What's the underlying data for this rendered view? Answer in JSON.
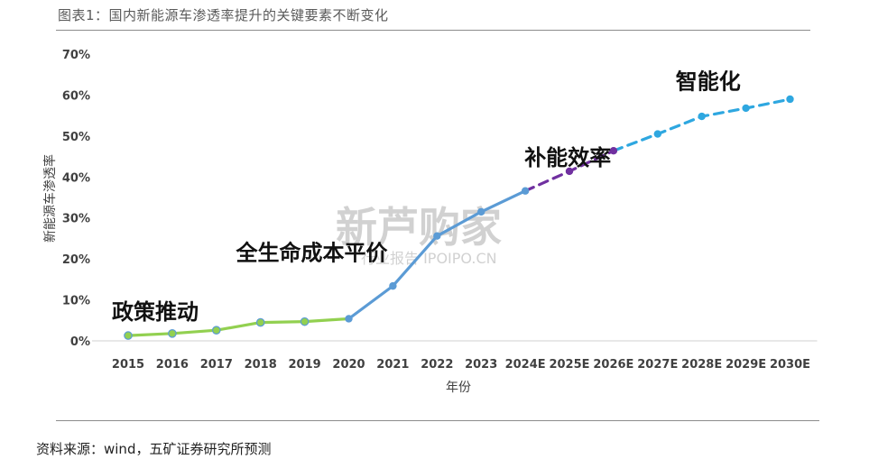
{
  "figure": {
    "title": "图表1：国内新能源车渗透率提升的关键要素不断变化",
    "source": "资料来源：wind，五矿证券研究所预测"
  },
  "watermark": {
    "main": "新芦购家",
    "sub": "行业报告 IPOIPO.CN"
  },
  "chart_data": {
    "type": "line",
    "categories": [
      "2015",
      "2016",
      "2017",
      "2018",
      "2019",
      "2020",
      "2021",
      "2022",
      "2023",
      "2024E",
      "2025E",
      "2026E",
      "2027E",
      "2028E",
      "2029E",
      "2030E"
    ],
    "values": [
      0.013,
      0.018,
      0.026,
      0.045,
      0.047,
      0.054,
      0.134,
      0.256,
      0.315,
      0.366,
      0.414,
      0.464,
      0.505,
      0.548,
      0.568,
      0.59
    ],
    "xlabel": "年份",
    "ylabel": "新能源车渗透率",
    "ylim": [
      0,
      0.7
    ],
    "yticks": [
      "0%",
      "10%",
      "20%",
      "30%",
      "40%",
      "50%",
      "60%",
      "70%"
    ],
    "grid": false,
    "segments": [
      {
        "from": 0,
        "to": 5,
        "color": "#92d050",
        "style": "solid"
      },
      {
        "from": 5,
        "to": 9,
        "color": "#5b9bd5",
        "style": "solid"
      },
      {
        "from": 9,
        "to": 11,
        "color": "#7030a0",
        "style": "dashed"
      },
      {
        "from": 11,
        "to": 15,
        "color": "#2ea7e0",
        "style": "dashed"
      }
    ],
    "annotations": [
      {
        "text": "政策推动",
        "at_index": 0
      },
      {
        "text": "全生命成本平价",
        "at_index": 5
      },
      {
        "text": "补能效率",
        "at_index": 8
      },
      {
        "text": "智能化",
        "at_index": 12
      }
    ]
  }
}
